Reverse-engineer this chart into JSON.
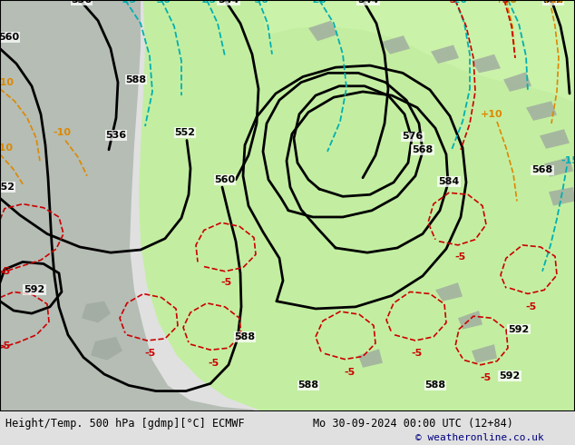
{
  "title_left": "Height/Temp. 500 hPa [gdmp][°C] ECMWF",
  "title_right": "Mo 30-09-2024 00:00 UTC (12+84)",
  "credit": "© weatheronline.co.uk",
  "figsize": [
    6.34,
    4.9
  ],
  "dpi": 100,
  "footer_color": "#e0e0e0",
  "map_bg": "#c8c8c8",
  "green_color": "#c0f09a",
  "black_lw": 2.0,
  "cyan_color": "#00b0b0",
  "orange_color": "#dd8800",
  "red_color": "#cc0000"
}
